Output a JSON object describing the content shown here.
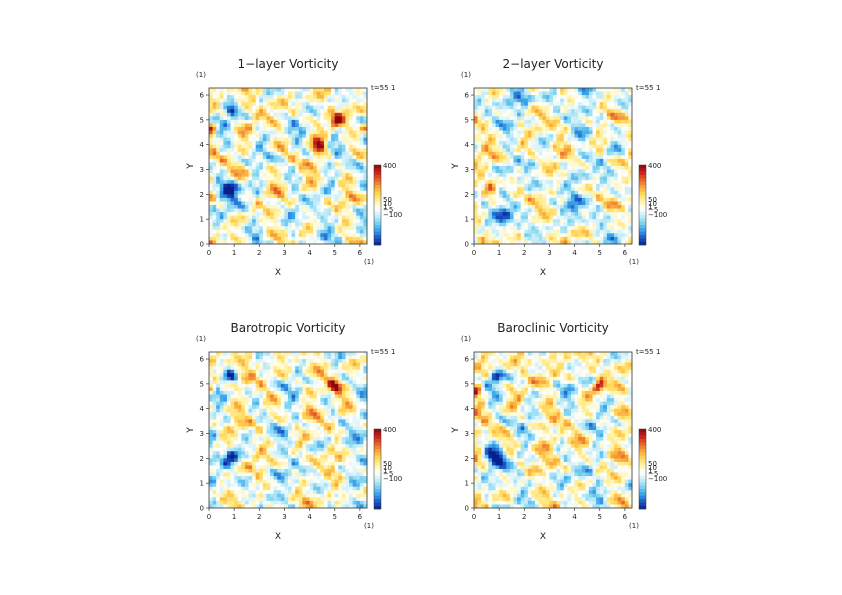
{
  "chart_data": [
    {
      "type": "heatmap",
      "title": "1−layer Vorticity",
      "xlabel": "X",
      "ylabel": "Y",
      "x_unit": "(1)",
      "y_unit": "(1)",
      "time_label": "t=55",
      "time_unit": "1",
      "xlim": [
        0,
        6.283
      ],
      "ylim": [
        0,
        6.283
      ],
      "xticks": [
        "0",
        "1",
        "2",
        "3",
        "4",
        "5",
        "6"
      ],
      "yticks": [
        "0",
        "1",
        "2",
        "3",
        "4",
        "5",
        "6"
      ],
      "colorbar_labels": [
        "400",
        "50",
        "10",
        "1",
        "−5",
        "−100"
      ],
      "vortices": [
        {
          "x": 0.9,
          "y": 2.2,
          "sign": -1,
          "strength": 1.0,
          "r": 0.4
        },
        {
          "x": 0.9,
          "y": 5.4,
          "sign": -1,
          "strength": 0.8,
          "r": 0.25
        },
        {
          "x": 4.4,
          "y": 3.9,
          "sign": 1,
          "strength": 1.0,
          "r": 0.3
        },
        {
          "x": 5.1,
          "y": 4.95,
          "sign": 1,
          "strength": 1.0,
          "r": 0.25
        },
        {
          "x": 0.1,
          "y": 4.7,
          "sign": 1,
          "strength": 0.8,
          "r": 0.2
        },
        {
          "x": 6.2,
          "y": 4.7,
          "sign": 1,
          "strength": 0.8,
          "r": 0.2
        }
      ]
    },
    {
      "type": "heatmap",
      "title": "2−layer Vorticity",
      "xlabel": "X",
      "ylabel": "Y",
      "x_unit": "(1)",
      "y_unit": "(1)",
      "time_label": "t=55",
      "time_unit": "1",
      "xlim": [
        0,
        6.283
      ],
      "ylim": [
        0,
        6.283
      ],
      "xticks": [
        "0",
        "1",
        "2",
        "3",
        "4",
        "5",
        "6"
      ],
      "yticks": [
        "0",
        "1",
        "2",
        "3",
        "4",
        "5",
        "6"
      ],
      "colorbar_labels": [
        "400",
        "50",
        "10",
        "1",
        "−5",
        "−100"
      ],
      "vortices": [
        {
          "x": 0.7,
          "y": 2.2,
          "sign": 1,
          "strength": 0.9,
          "r": 0.3
        },
        {
          "x": 1.2,
          "y": 1.0,
          "sign": -1,
          "strength": 0.7,
          "r": 0.4
        },
        {
          "x": 4.0,
          "y": 1.5,
          "sign": -1,
          "strength": 0.5,
          "r": 0.3
        },
        {
          "x": 2.0,
          "y": 5.8,
          "sign": -1,
          "strength": 0.5,
          "r": 0.3
        }
      ]
    },
    {
      "type": "heatmap",
      "title": "Barotropic Vorticity",
      "xlabel": "X",
      "ylabel": "Y",
      "x_unit": "(1)",
      "y_unit": "(1)",
      "time_label": "t=55",
      "time_unit": "1",
      "xlim": [
        0,
        6.283
      ],
      "ylim": [
        0,
        6.283
      ],
      "xticks": [
        "0",
        "1",
        "2",
        "3",
        "4",
        "5",
        "6"
      ],
      "yticks": [
        "0",
        "1",
        "2",
        "3",
        "4",
        "5",
        "6"
      ],
      "colorbar_labels": [
        "400",
        "50",
        "10",
        "1",
        "−5",
        "−100"
      ],
      "vortices": [
        {
          "x": 0.9,
          "y": 2.1,
          "sign": -1,
          "strength": 0.9,
          "r": 0.35
        },
        {
          "x": 0.9,
          "y": 5.3,
          "sign": -1,
          "strength": 0.7,
          "r": 0.25
        },
        {
          "x": 5.0,
          "y": 4.9,
          "sign": 1,
          "strength": 0.9,
          "r": 0.22
        },
        {
          "x": 0.1,
          "y": 4.8,
          "sign": 1,
          "strength": 0.7,
          "r": 0.2
        }
      ]
    },
    {
      "type": "heatmap",
      "title": "Baroclinic Vorticity",
      "xlabel": "X",
      "ylabel": "Y",
      "x_unit": "(1)",
      "y_unit": "(1)",
      "time_label": "t=55",
      "time_unit": "1",
      "xlim": [
        0,
        6.283
      ],
      "ylim": [
        0,
        6.283
      ],
      "xticks": [
        "0",
        "1",
        "2",
        "3",
        "4",
        "5",
        "6"
      ],
      "yticks": [
        "0",
        "1",
        "2",
        "3",
        "4",
        "5",
        "6"
      ],
      "colorbar_labels": [
        "400",
        "50",
        "10",
        "1",
        "−5",
        "−100"
      ],
      "vortices": [
        {
          "x": 0.9,
          "y": 2.1,
          "sign": -1,
          "strength": 1.0,
          "r": 0.4
        },
        {
          "x": 0.9,
          "y": 5.3,
          "sign": -1,
          "strength": 0.7,
          "r": 0.25
        },
        {
          "x": 5.0,
          "y": 4.9,
          "sign": 1,
          "strength": 0.9,
          "r": 0.22
        },
        {
          "x": 0.1,
          "y": 4.7,
          "sign": 1,
          "strength": 0.7,
          "r": 0.2
        }
      ]
    }
  ],
  "colormap": [
    "#08208c",
    "#1f58c8",
    "#39a0e8",
    "#7cd2f0",
    "#c8eef8",
    "#ffffff",
    "#fff3a8",
    "#ffd85a",
    "#f7a43c",
    "#e8602a",
    "#c81e1e",
    "#8a0a0a"
  ]
}
